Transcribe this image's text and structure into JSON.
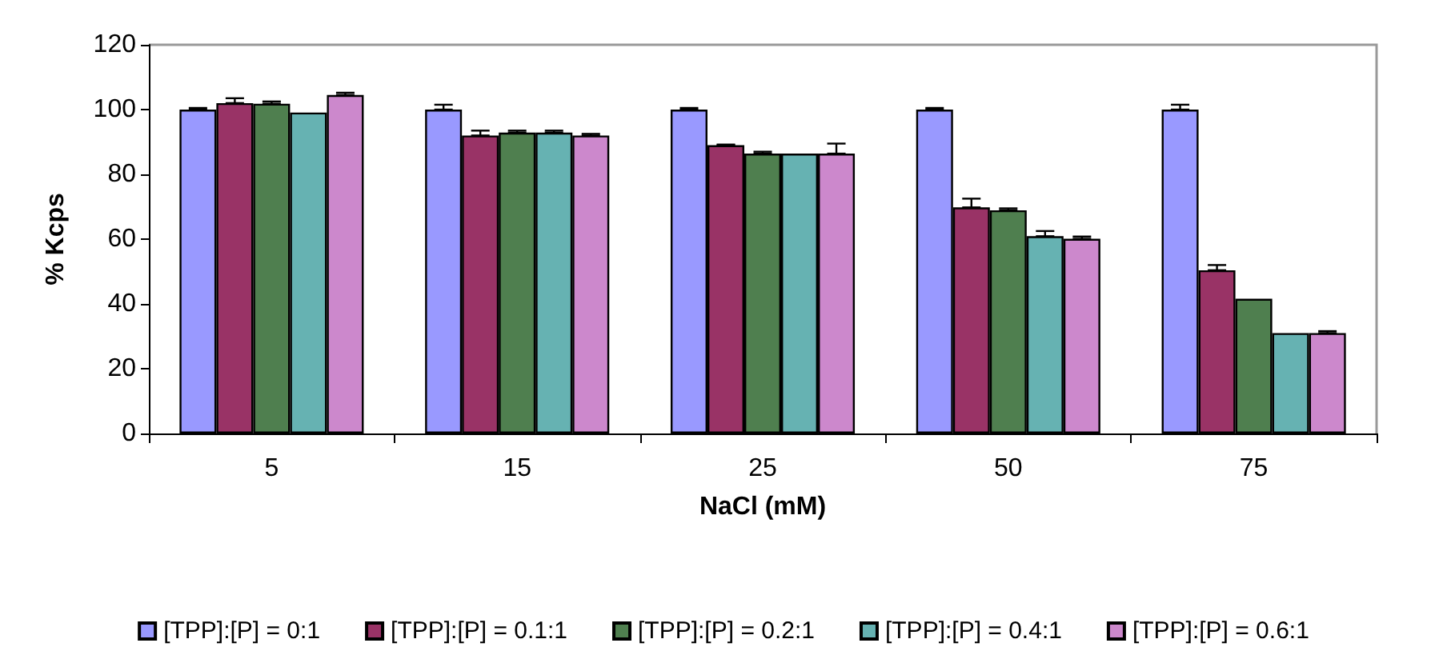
{
  "chart_data": {
    "type": "bar",
    "xlabel": "NaCl (mM)",
    "ylabel": "% Kcps",
    "categories": [
      "5",
      "15",
      "25",
      "50",
      "75"
    ],
    "series": [
      {
        "name": "[TPP]:[P] = 0:1",
        "color": "#9999ff",
        "values": [
          100,
          100,
          100,
          100,
          100
        ],
        "errors": [
          [
            100,
            100.5
          ],
          [
            100,
            101.5
          ],
          [
            100,
            100.5
          ],
          [
            100,
            100.5
          ],
          [
            100,
            101.5
          ]
        ]
      },
      {
        "name": "[TPP]:[P] = 0.1:1",
        "color": "#993366",
        "values": [
          102,
          92,
          89,
          69.8,
          50.4
        ],
        "errors": [
          [
            102,
            103.5
          ],
          [
            92,
            93.5
          ],
          [
            89,
            89.2
          ],
          [
            69.8,
            72.5
          ],
          [
            50.4,
            52
          ]
        ]
      },
      {
        "name": "[TPP]:[P] = 0.2:1",
        "color": "#4f7f4f",
        "values": [
          101.8,
          92.9,
          86.4,
          68.9,
          41.6
        ],
        "errors": [
          [
            101.8,
            102.5
          ],
          [
            92.9,
            93.5
          ],
          [
            86.4,
            87
          ],
          [
            68.9,
            69.5
          ],
          null
        ]
      },
      {
        "name": "[TPP]:[P] = 0.4:1",
        "color": "#66b2b2",
        "values": [
          99.1,
          92.9,
          86.4,
          60.9,
          31
        ],
        "errors": [
          null,
          [
            92.9,
            93.5
          ],
          null,
          [
            60.9,
            62.5
          ],
          null
        ]
      },
      {
        "name": "[TPP]:[P] = 0.6:1",
        "color": "#cc88cc",
        "values": [
          104.5,
          92,
          86.4,
          60.1,
          31
        ],
        "errors": [
          [
            104.5,
            105.2
          ],
          [
            92,
            92.5
          ],
          [
            86.4,
            89.5
          ],
          [
            60.1,
            60.8
          ],
          [
            31,
            31.6
          ]
        ]
      }
    ],
    "ylim": [
      0,
      120
    ],
    "yticks": [
      0,
      20,
      40,
      60,
      80,
      100,
      120
    ],
    "grid": false,
    "legend": "bottom"
  }
}
